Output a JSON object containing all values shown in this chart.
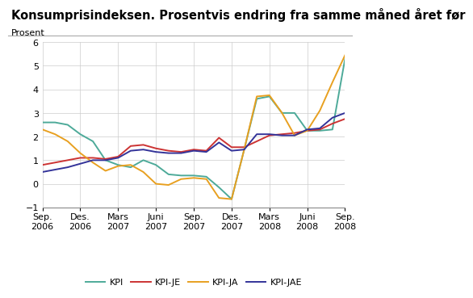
{
  "title": "Konsumprisindeksen. Prosentvis endring fra samme måned året før",
  "ylabel": "Prosent",
  "ylim": [
    -1,
    6
  ],
  "yticks": [
    -1,
    0,
    1,
    2,
    3,
    4,
    5,
    6
  ],
  "background_color": "#ffffff",
  "grid_color": "#cccccc",
  "title_fontsize": 10.5,
  "label_fontsize": 8,
  "tick_fontsize": 8,
  "x_labels": [
    "Sep.\n2006",
    "Des.\n2006",
    "Mars\n2007",
    "Juni\n2007",
    "Sep.\n2007",
    "Des.\n2007",
    "Mars\n2008",
    "Juni\n2008",
    "Sep.\n2008"
  ],
  "x_tick_positions": [
    0,
    3,
    6,
    9,
    12,
    15,
    18,
    21,
    24
  ],
  "series": {
    "KPI": {
      "color": "#4daa99",
      "linewidth": 1.4,
      "values": [
        2.6,
        2.6,
        2.5,
        2.1,
        1.8,
        1.0,
        0.8,
        0.7,
        1.0,
        0.8,
        0.4,
        0.35,
        0.35,
        0.3,
        -0.15,
        -0.65,
        1.45,
        3.6,
        3.7,
        3.0,
        3.0,
        2.25,
        2.25,
        2.3,
        5.3
      ]
    },
    "KPI-JE": {
      "color": "#cc3333",
      "linewidth": 1.4,
      "values": [
        0.8,
        0.9,
        1.0,
        1.1,
        1.1,
        1.05,
        1.15,
        1.6,
        1.65,
        1.5,
        1.4,
        1.35,
        1.45,
        1.4,
        1.95,
        1.55,
        1.55,
        1.8,
        2.05,
        2.1,
        2.15,
        2.25,
        2.3,
        2.55,
        2.75
      ]
    },
    "KPI-JA": {
      "color": "#e8a020",
      "linewidth": 1.4,
      "values": [
        2.3,
        2.1,
        1.8,
        1.3,
        0.9,
        0.55,
        0.75,
        0.8,
        0.5,
        0.0,
        -0.05,
        0.2,
        0.25,
        0.2,
        -0.6,
        -0.65,
        1.45,
        3.7,
        3.75,
        3.0,
        2.05,
        2.25,
        3.1,
        4.3,
        5.45
      ]
    },
    "KPI-JAE": {
      "color": "#333399",
      "linewidth": 1.4,
      "values": [
        0.5,
        0.6,
        0.7,
        0.85,
        1.0,
        1.0,
        1.1,
        1.4,
        1.45,
        1.35,
        1.3,
        1.3,
        1.4,
        1.35,
        1.75,
        1.4,
        1.45,
        2.1,
        2.1,
        2.05,
        2.05,
        2.3,
        2.35,
        2.8,
        3.0
      ]
    }
  }
}
